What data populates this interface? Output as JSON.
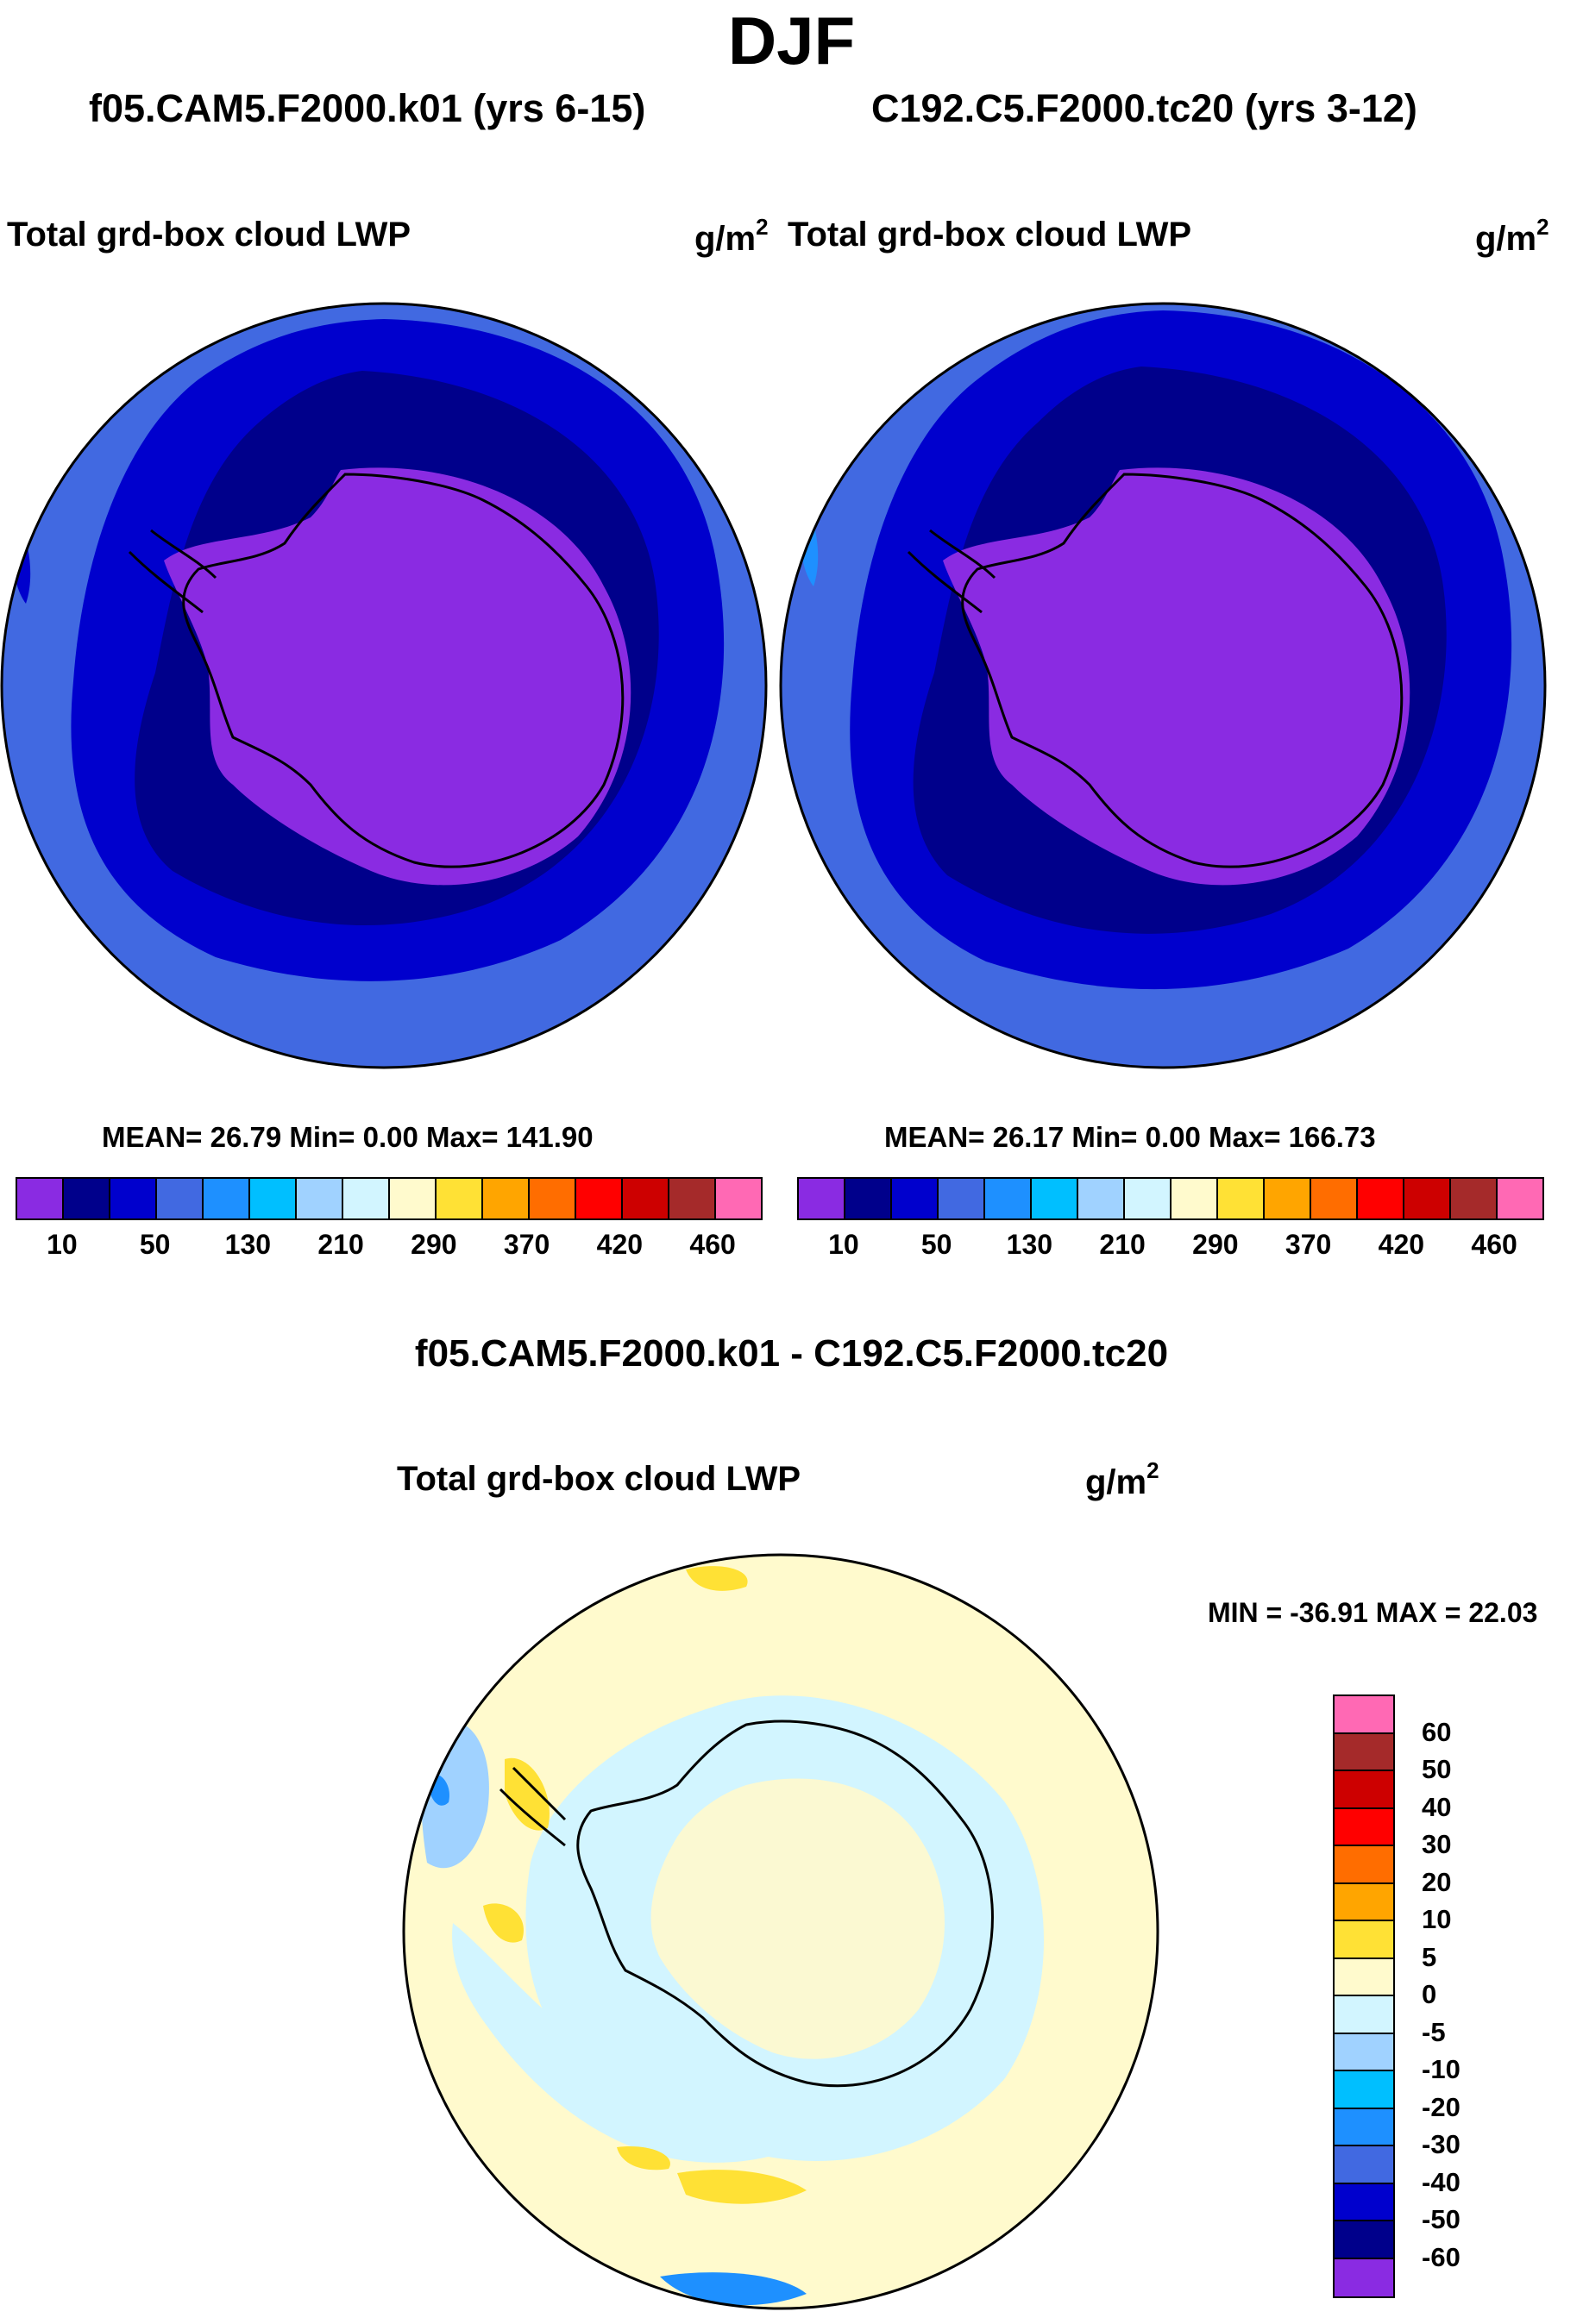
{
  "season": "DJF",
  "panels": [
    {
      "case": "f05.CAM5.F2000.k01 (yrs 6-15)",
      "field": "Total grd-box cloud LWP",
      "units": "g/m",
      "units_sup": "2",
      "stats": "MEAN=  26.79  Min=    0.00  Max= 141.90"
    },
    {
      "case": "C192.C5.F2000.tc20 (yrs 3-12)",
      "field": "Total grd-box cloud LWP",
      "units": "g/m",
      "units_sup": "2",
      "stats": "MEAN=  26.17  Min=    0.00  Max= 166.73"
    }
  ],
  "colorbar": {
    "colors": [
      "#8a2be2",
      "#00008b",
      "#0000cd",
      "#4169e1",
      "#1e90ff",
      "#00bfff",
      "#a0d2ff",
      "#d2f5ff",
      "#fffacd",
      "#ffe135",
      "#ffa500",
      "#ff6d00",
      "#ff0000",
      "#cd0000",
      "#a52a2a",
      "#ff69b4"
    ],
    "labels": [
      "10",
      "50",
      "130",
      "210",
      "290",
      "370",
      "420",
      "460"
    ]
  },
  "difference": {
    "title": "f05.CAM5.F2000.k01 - C192.C5.F2000.tc20",
    "field": "Total grd-box cloud LWP",
    "units": "g/m",
    "units_sup": "2",
    "stats": "MIN = -36.91 MAX =  22.03",
    "colorbar": {
      "colors": [
        "#ff69b4",
        "#a52a2a",
        "#cd0000",
        "#ff0000",
        "#ff6d00",
        "#ffa500",
        "#ffe135",
        "#fffacd",
        "#d2f5ff",
        "#a0d2ff",
        "#00bfff",
        "#1e90ff",
        "#4169e1",
        "#0000cd",
        "#00008b",
        "#8a2be2"
      ],
      "labels": [
        "60",
        "50",
        "40",
        "30",
        "20",
        "10",
        "5",
        "0",
        "-5",
        "-10",
        "-20",
        "-30",
        "-40",
        "-50",
        "-60"
      ]
    }
  }
}
